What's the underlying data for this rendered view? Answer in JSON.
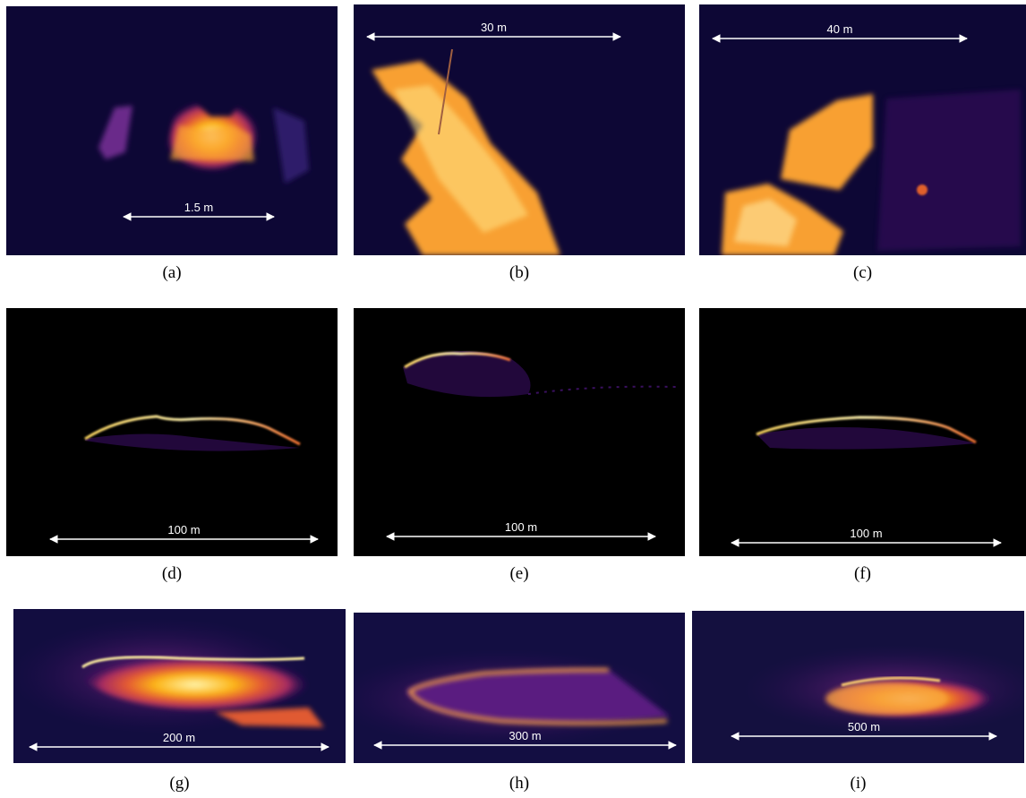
{
  "panels": [
    {
      "label": "(a)",
      "scale": "1.5 m"
    },
    {
      "label": "(b)",
      "scale": "30 m"
    },
    {
      "label": "(c)",
      "scale": "40 m"
    },
    {
      "label": "(d)",
      "scale": "100 m"
    },
    {
      "label": "(e)",
      "scale": "100 m"
    },
    {
      "label": "(f)",
      "scale": "100 m"
    },
    {
      "label": "(g)",
      "scale": "200  m"
    },
    {
      "label": "(h)",
      "scale": "300  m"
    },
    {
      "label": "(i)",
      "scale": "500  m"
    }
  ]
}
